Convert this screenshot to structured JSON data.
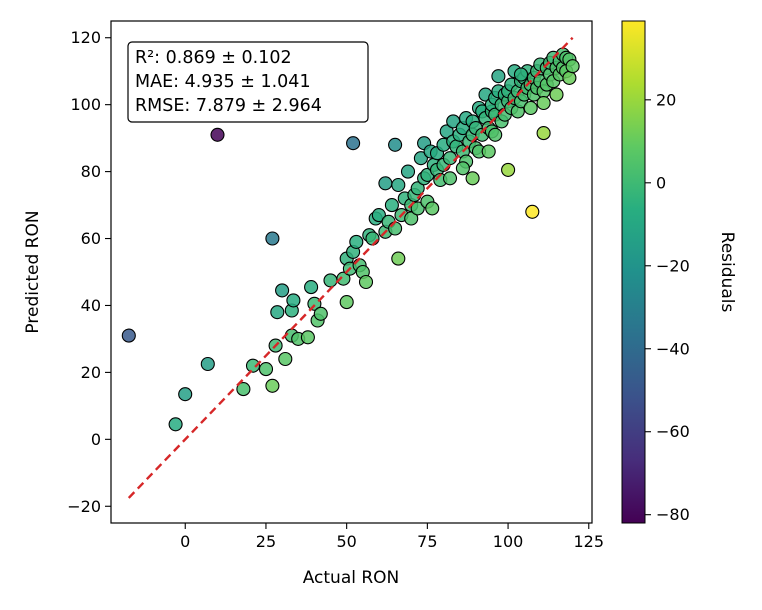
{
  "chart_data": {
    "type": "scatter",
    "xlabel": "Actual RON",
    "ylabel": "Predicted RON",
    "xlim": [
      -23,
      126
    ],
    "ylim": [
      -25,
      125
    ],
    "xticks": [
      0,
      25,
      50,
      75,
      100,
      125
    ],
    "yticks": [
      -20,
      0,
      20,
      40,
      60,
      80,
      100,
      120
    ],
    "tick_labels_x": [
      "0",
      "25",
      "50",
      "75",
      "100",
      "125"
    ],
    "tick_labels_y": [
      "−20",
      "0",
      "20",
      "40",
      "60",
      "80",
      "100",
      "120"
    ],
    "reference_line": {
      "name": "identity",
      "x": [
        -17.5,
        120
      ],
      "y": [
        -17.5,
        120
      ],
      "color": "#d62728",
      "style": "dashed"
    },
    "stats": [
      "R²: 0.869 ± 0.102",
      "MAE: 4.935 ± 1.041",
      "RMSE: 7.879 ± 2.964"
    ],
    "colorbar": {
      "label": "Residuals",
      "range": [
        -82,
        39
      ],
      "ticks": [
        20,
        0,
        -20,
        -40,
        -60,
        -80
      ],
      "tick_labels": [
        "20",
        "0",
        "−20",
        "−40",
        "−60",
        "−80"
      ],
      "colormap": "viridis"
    },
    "points": [
      [
        -17.5,
        31
      ],
      [
        -3,
        4.5
      ],
      [
        0,
        13.5
      ],
      [
        7,
        22.5
      ],
      [
        10,
        91
      ],
      [
        18,
        15
      ],
      [
        21,
        22
      ],
      [
        25,
        21
      ],
      [
        27,
        16
      ],
      [
        27,
        60
      ],
      [
        28,
        28
      ],
      [
        28.5,
        38
      ],
      [
        30,
        44.5
      ],
      [
        31,
        24
      ],
      [
        33,
        31
      ],
      [
        33,
        38.5
      ],
      [
        33.5,
        41.5
      ],
      [
        35,
        30
      ],
      [
        38,
        30.5
      ],
      [
        39,
        45.5
      ],
      [
        40,
        40.5
      ],
      [
        41,
        35.5
      ],
      [
        42,
        37.5
      ],
      [
        45,
        47.5
      ],
      [
        49,
        48
      ],
      [
        50,
        41
      ],
      [
        50,
        54
      ],
      [
        51,
        51
      ],
      [
        52,
        88.5
      ],
      [
        52,
        56
      ],
      [
        53,
        59
      ],
      [
        54,
        52
      ],
      [
        55,
        50
      ],
      [
        56,
        47
      ],
      [
        57,
        61
      ],
      [
        58,
        60
      ],
      [
        59,
        66
      ],
      [
        60,
        67
      ],
      [
        62,
        62
      ],
      [
        62,
        76.5
      ],
      [
        63,
        65
      ],
      [
        64,
        70
      ],
      [
        65,
        88
      ],
      [
        65,
        63
      ],
      [
        66,
        54
      ],
      [
        66,
        76
      ],
      [
        67,
        67
      ],
      [
        68,
        72
      ],
      [
        69,
        80
      ],
      [
        70,
        70
      ],
      [
        70,
        66
      ],
      [
        71,
        73
      ],
      [
        72,
        69
      ],
      [
        72,
        75
      ],
      [
        73,
        84
      ],
      [
        74,
        88.5
      ],
      [
        74,
        78
      ],
      [
        75,
        71
      ],
      [
        75,
        79
      ],
      [
        76,
        86
      ],
      [
        77,
        82
      ],
      [
        78,
        80.5
      ],
      [
        78,
        85.5
      ],
      [
        79,
        77.5
      ],
      [
        80,
        88
      ],
      [
        80,
        82
      ],
      [
        81,
        92
      ],
      [
        82,
        84
      ],
      [
        82,
        78
      ],
      [
        83,
        95
      ],
      [
        83,
        89
      ],
      [
        84,
        87.5
      ],
      [
        85,
        91
      ],
      [
        86,
        86
      ],
      [
        86,
        93
      ],
      [
        87,
        83
      ],
      [
        87,
        96
      ],
      [
        88,
        89
      ],
      [
        89,
        91
      ],
      [
        89,
        95
      ],
      [
        90,
        93
      ],
      [
        90,
        87
      ],
      [
        91,
        99
      ],
      [
        91,
        86
      ],
      [
        92,
        98
      ],
      [
        92,
        91
      ],
      [
        93,
        96
      ],
      [
        93,
        103
      ],
      [
        94,
        93
      ],
      [
        95,
        98
      ],
      [
        95,
        100
      ],
      [
        95,
        92
      ],
      [
        96,
        97
      ],
      [
        96,
        102
      ],
      [
        97,
        108.5
      ],
      [
        97,
        104
      ],
      [
        98,
        100
      ],
      [
        98,
        95
      ],
      [
        99,
        103
      ],
      [
        99,
        97
      ],
      [
        100,
        101
      ],
      [
        100,
        104
      ],
      [
        100,
        80.5
      ],
      [
        101,
        99
      ],
      [
        101,
        106
      ],
      [
        102,
        102
      ],
      [
        102,
        110
      ],
      [
        103,
        104
      ],
      [
        103,
        98
      ],
      [
        104,
        107
      ],
      [
        104,
        101
      ],
      [
        105,
        103
      ],
      [
        105,
        108
      ],
      [
        106,
        110
      ],
      [
        106,
        105
      ],
      [
        107,
        106
      ],
      [
        107,
        99
      ],
      [
        107.5,
        68
      ],
      [
        108,
        108
      ],
      [
        108,
        103
      ],
      [
        109,
        110
      ],
      [
        109,
        105
      ],
      [
        110,
        107
      ],
      [
        110,
        112
      ],
      [
        111,
        104
      ],
      [
        111,
        91.5
      ],
      [
        111,
        100.5
      ],
      [
        112,
        106
      ],
      [
        112,
        111
      ],
      [
        113,
        109
      ],
      [
        113,
        112.5
      ],
      [
        114,
        107
      ],
      [
        114,
        114
      ],
      [
        115,
        111
      ],
      [
        115,
        103
      ],
      [
        116,
        113
      ],
      [
        116,
        109
      ],
      [
        117,
        115
      ],
      [
        117,
        111
      ],
      [
        118,
        114
      ],
      [
        118,
        110
      ],
      [
        119,
        108
      ],
      [
        119,
        113.5
      ],
      [
        120,
        111.5
      ],
      [
        76.5,
        69
      ],
      [
        96,
        91
      ],
      [
        104,
        109
      ],
      [
        86,
        81
      ],
      [
        89,
        78
      ],
      [
        94,
        86
      ]
    ]
  }
}
